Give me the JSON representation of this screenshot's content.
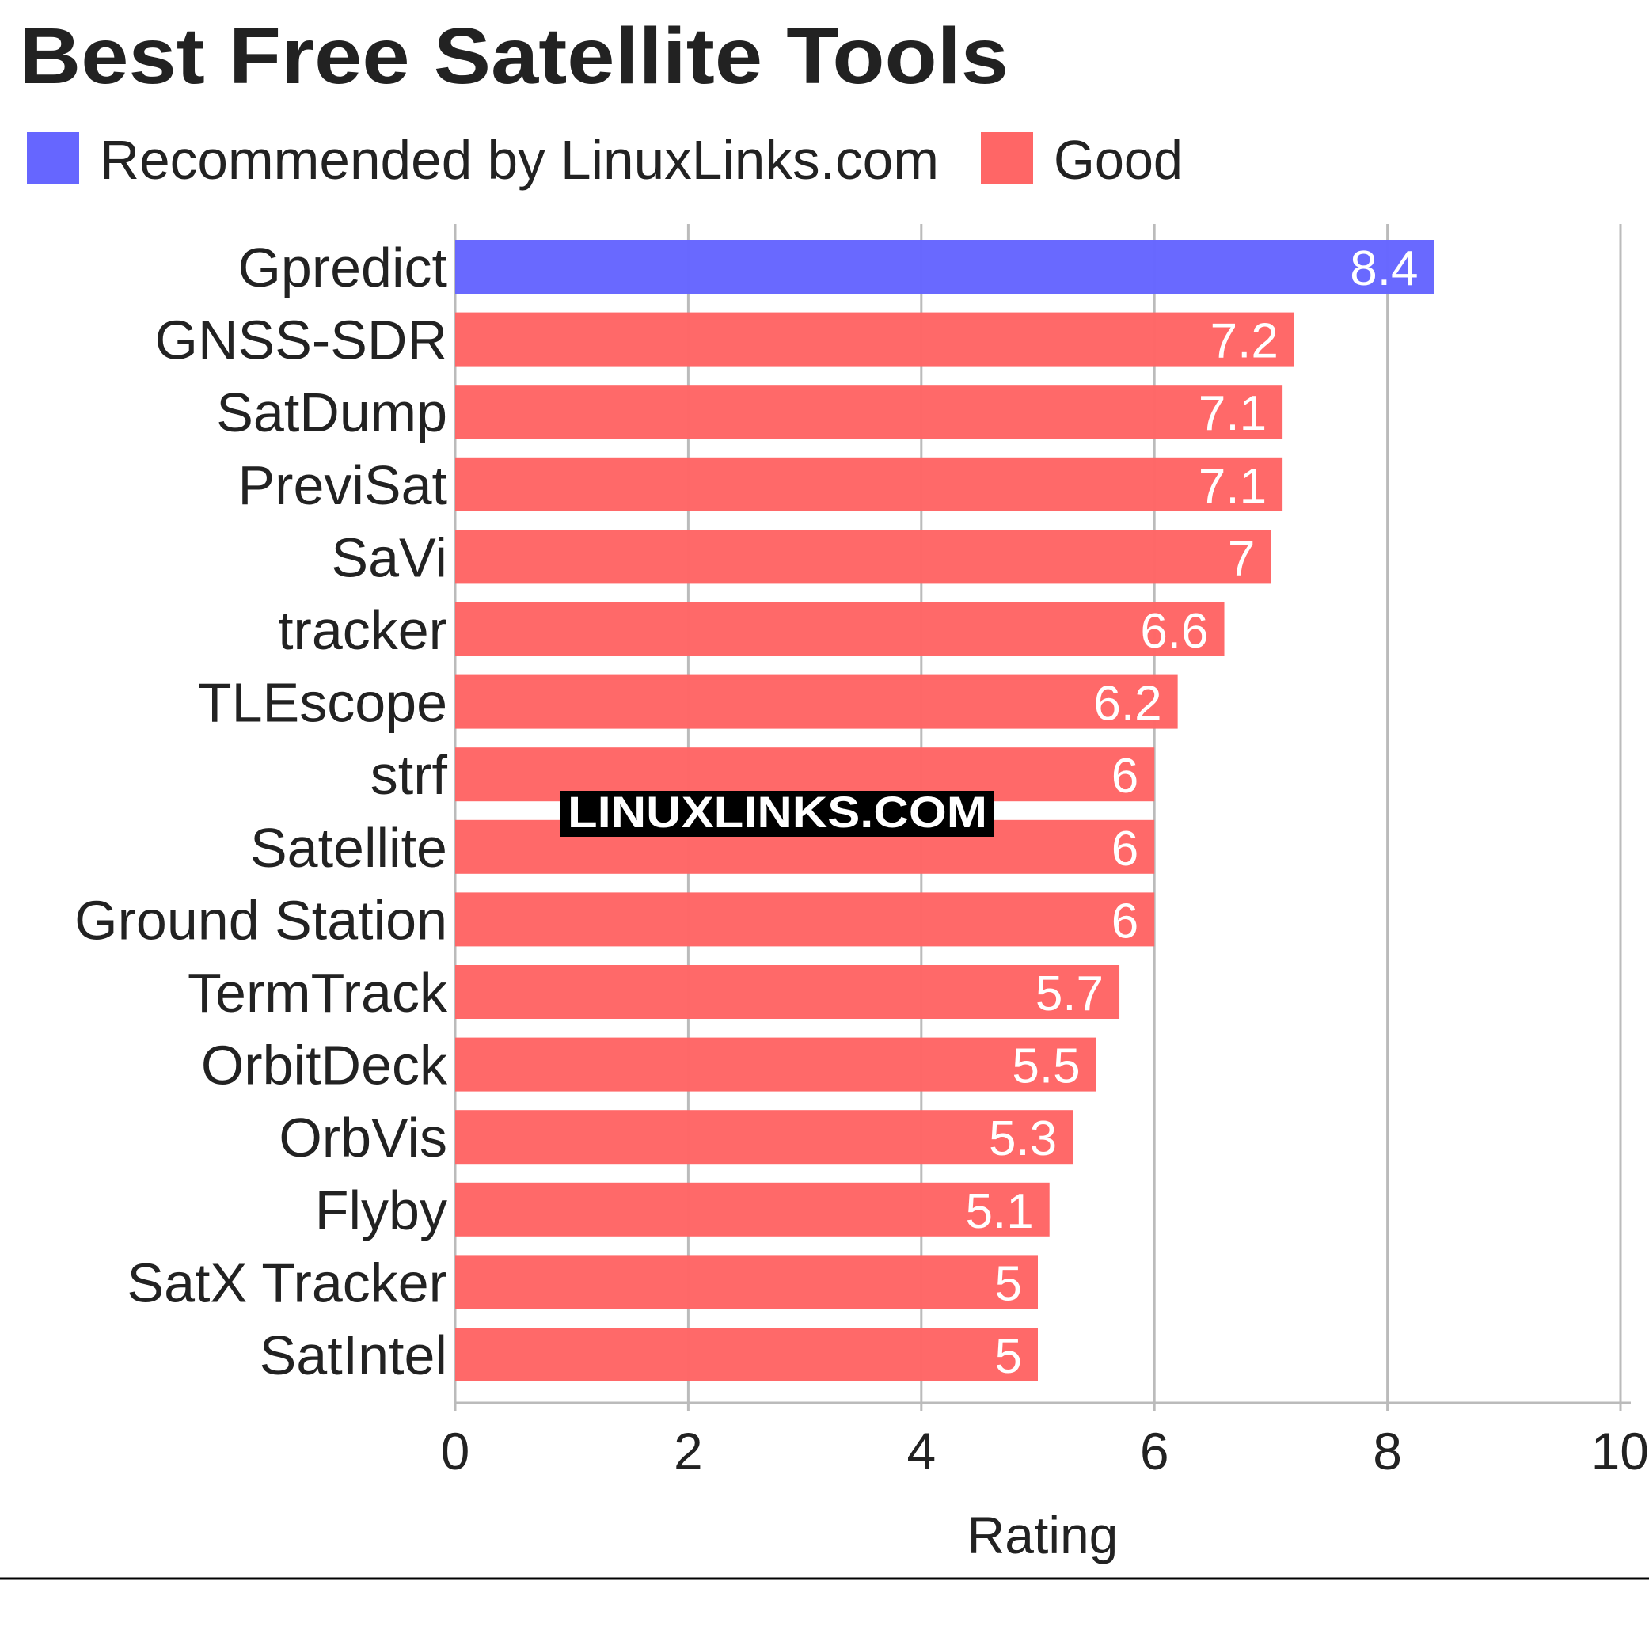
{
  "chart_data": {
    "type": "bar",
    "orientation": "horizontal",
    "title": "Best Free Satellite Tools",
    "xlabel": "Rating",
    "ylabel": "",
    "xlim": [
      0,
      10
    ],
    "xticks": [
      0,
      2,
      4,
      6,
      8,
      10
    ],
    "grid": true,
    "legend_position": "top-left",
    "legend": [
      {
        "name": "Recommended by LinuxLinks.com",
        "color": "#6666ff"
      },
      {
        "name": "Good",
        "color": "#ff6666"
      }
    ],
    "categories": [
      "Gpredict",
      "GNSS-SDR",
      "SatDump",
      "PreviSat",
      "SaVi",
      "tracker",
      "TLEscope",
      "strf",
      "Satellite",
      "Ground Station",
      "TermTrack",
      "OrbitDeck",
      "OrbVis",
      "Flyby",
      "SatX Tracker",
      "SatIntel"
    ],
    "values": [
      8.4,
      7.2,
      7.1,
      7.1,
      7,
      6.6,
      6.2,
      6,
      6,
      6,
      5.7,
      5.5,
      5.3,
      5.1,
      5,
      5
    ],
    "value_labels": [
      "8.4",
      "7.2",
      "7.1",
      "7.1",
      "7",
      "6.6",
      "6.2",
      "6",
      "6",
      "6",
      "5.7",
      "5.5",
      "5.3",
      "5.1",
      "5",
      "5"
    ],
    "groups": [
      0,
      1,
      1,
      1,
      1,
      1,
      1,
      1,
      1,
      1,
      1,
      1,
      1,
      1,
      1,
      1
    ]
  },
  "watermark": "LINUXLINKS.COM"
}
